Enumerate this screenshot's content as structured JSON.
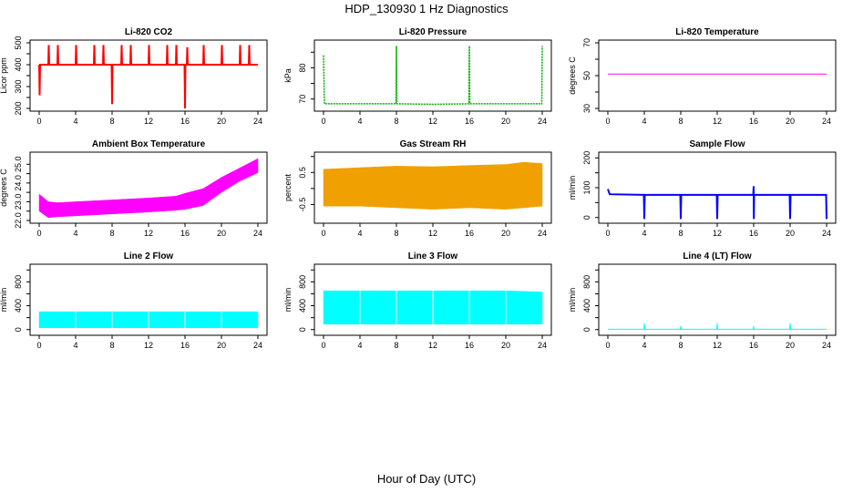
{
  "figure": {
    "title": "HDP_130930  1 Hz Diagnostics",
    "footer_label": "Hour of Day (UTC)"
  },
  "chart_data": [
    {
      "type": "line",
      "title": "Li-820 CO2",
      "ylabel": "Licor ppm",
      "color": "#ff0000",
      "xlim": [
        0,
        24
      ],
      "ylim": [
        200,
        500
      ],
      "xticks": [
        "0",
        "4",
        "8",
        "12",
        "16",
        "20",
        "24"
      ],
      "yticks": [
        200,
        250,
        300,
        350,
        400,
        450,
        500
      ],
      "ytick_labels": [
        "200",
        "",
        "300",
        "",
        "400",
        "",
        "500"
      ],
      "series": [
        {
          "values": [
            {
              "x": 0.0,
              "y": 400
            },
            {
              "x": 0.05,
              "y": 260
            },
            {
              "x": 0.1,
              "y": 400
            },
            {
              "x": 1.0,
              "y": 400
            },
            {
              "x": 1.05,
              "y": 490
            },
            {
              "x": 1.1,
              "y": 400
            },
            {
              "x": 2.0,
              "y": 400
            },
            {
              "x": 2.05,
              "y": 490
            },
            {
              "x": 2.1,
              "y": 400
            },
            {
              "x": 4.0,
              "y": 400
            },
            {
              "x": 4.05,
              "y": 490
            },
            {
              "x": 4.1,
              "y": 400
            },
            {
              "x": 6.0,
              "y": 400
            },
            {
              "x": 6.05,
              "y": 490
            },
            {
              "x": 6.1,
              "y": 400
            },
            {
              "x": 7.0,
              "y": 400
            },
            {
              "x": 7.05,
              "y": 490
            },
            {
              "x": 7.1,
              "y": 400
            },
            {
              "x": 7.95,
              "y": 400
            },
            {
              "x": 8.0,
              "y": 220
            },
            {
              "x": 8.05,
              "y": 400
            },
            {
              "x": 9.0,
              "y": 400
            },
            {
              "x": 9.05,
              "y": 490
            },
            {
              "x": 9.1,
              "y": 400
            },
            {
              "x": 10.0,
              "y": 400
            },
            {
              "x": 10.05,
              "y": 490
            },
            {
              "x": 10.1,
              "y": 400
            },
            {
              "x": 12.0,
              "y": 400
            },
            {
              "x": 12.05,
              "y": 490
            },
            {
              "x": 12.1,
              "y": 400
            },
            {
              "x": 14.0,
              "y": 400
            },
            {
              "x": 14.05,
              "y": 490
            },
            {
              "x": 14.1,
              "y": 400
            },
            {
              "x": 15.0,
              "y": 400
            },
            {
              "x": 15.05,
              "y": 490
            },
            {
              "x": 15.1,
              "y": 400
            },
            {
              "x": 15.95,
              "y": 400
            },
            {
              "x": 16.0,
              "y": 200
            },
            {
              "x": 16.05,
              "y": 400
            },
            {
              "x": 16.2,
              "y": 400
            },
            {
              "x": 16.25,
              "y": 480
            },
            {
              "x": 16.3,
              "y": 400
            },
            {
              "x": 18.0,
              "y": 400
            },
            {
              "x": 18.05,
              "y": 490
            },
            {
              "x": 18.1,
              "y": 400
            },
            {
              "x": 20.0,
              "y": 400
            },
            {
              "x": 20.05,
              "y": 490
            },
            {
              "x": 20.1,
              "y": 400
            },
            {
              "x": 22.0,
              "y": 400
            },
            {
              "x": 22.05,
              "y": 490
            },
            {
              "x": 22.1,
              "y": 400
            },
            {
              "x": 23.0,
              "y": 400
            },
            {
              "x": 23.05,
              "y": 490
            },
            {
              "x": 23.1,
              "y": 400
            },
            {
              "x": 24.0,
              "y": 400
            }
          ]
        }
      ]
    },
    {
      "type": "line",
      "title": "Li-820 Pressure",
      "ylabel": "kPa",
      "color": "#00b000",
      "xlim": [
        0,
        24
      ],
      "ylim": [
        67,
        88
      ],
      "xticks": [
        "0",
        "4",
        "8",
        "12",
        "16",
        "20",
        "24"
      ],
      "yticks": [
        70,
        75,
        80,
        85
      ],
      "ytick_labels": [
        "70",
        "",
        "80",
        ""
      ],
      "series": [
        {
          "values": [
            {
              "x": 0.0,
              "y": 84
            },
            {
              "x": 0.1,
              "y": 68.5
            },
            {
              "x": 7.95,
              "y": 68.5
            },
            {
              "x": 8.0,
              "y": 87
            },
            {
              "x": 8.05,
              "y": 68.5
            },
            {
              "x": 12.0,
              "y": 68.3
            },
            {
              "x": 15.95,
              "y": 68.5
            },
            {
              "x": 16.0,
              "y": 87
            },
            {
              "x": 16.05,
              "y": 68.5
            },
            {
              "x": 23.95,
              "y": 68.5
            },
            {
              "x": 24.0,
              "y": 87
            }
          ]
        }
      ]
    },
    {
      "type": "line",
      "title": "Li-820 Temperature",
      "ylabel": "degrees C",
      "color": "#ff00ff",
      "xlim": [
        0,
        24
      ],
      "ylim": [
        30,
        70
      ],
      "xticks": [
        "0",
        "4",
        "8",
        "12",
        "16",
        "20",
        "24"
      ],
      "yticks": [
        30,
        40,
        50,
        60,
        70
      ],
      "ytick_labels": [
        "30",
        "",
        "50",
        "",
        "70"
      ],
      "series": [
        {
          "values": [
            {
              "x": 0,
              "y": 51
            },
            {
              "x": 24,
              "y": 51
            }
          ]
        }
      ]
    },
    {
      "type": "area",
      "title": "Ambient Box Temperature",
      "ylabel": "degrees C",
      "color": "#ff00ff",
      "xlim": [
        0,
        24
      ],
      "ylim": [
        22,
        25.5
      ],
      "xticks": [
        "0",
        "4",
        "8",
        "12",
        "16",
        "20",
        "24"
      ],
      "yticks": [
        22.0,
        22.5,
        23.0,
        23.5,
        24.0,
        24.5,
        25.0
      ],
      "ytick_labels": [
        "22.0",
        "",
        "23.0",
        "",
        "24.0",
        "",
        "25.0"
      ],
      "series": [
        {
          "name": "upper",
          "values": [
            {
              "x": 0,
              "y": 23.4
            },
            {
              "x": 1,
              "y": 23.0
            },
            {
              "x": 2,
              "y": 22.95
            },
            {
              "x": 4,
              "y": 23.0
            },
            {
              "x": 8,
              "y": 23.1
            },
            {
              "x": 12,
              "y": 23.2
            },
            {
              "x": 15,
              "y": 23.3
            },
            {
              "x": 16,
              "y": 23.45
            },
            {
              "x": 18,
              "y": 23.7
            },
            {
              "x": 20,
              "y": 24.3
            },
            {
              "x": 22,
              "y": 24.8
            },
            {
              "x": 24,
              "y": 25.3
            }
          ]
        },
        {
          "name": "lower",
          "values": [
            {
              "x": 0,
              "y": 22.5
            },
            {
              "x": 1,
              "y": 22.15
            },
            {
              "x": 2,
              "y": 22.2
            },
            {
              "x": 4,
              "y": 22.25
            },
            {
              "x": 8,
              "y": 22.35
            },
            {
              "x": 12,
              "y": 22.45
            },
            {
              "x": 15,
              "y": 22.55
            },
            {
              "x": 16,
              "y": 22.6
            },
            {
              "x": 18,
              "y": 22.8
            },
            {
              "x": 20,
              "y": 23.5
            },
            {
              "x": 22,
              "y": 24.1
            },
            {
              "x": 24,
              "y": 24.55
            }
          ]
        }
      ]
    },
    {
      "type": "area",
      "title": "Gas Stream RH",
      "ylabel": "percent",
      "color": "#f0a000",
      "xlim": [
        0,
        24
      ],
      "ylim": [
        -1.0,
        1.05
      ],
      "xticks": [
        "0",
        "4",
        "8",
        "12",
        "16",
        "20",
        "24"
      ],
      "yticks": [
        -0.5,
        0.0,
        0.5,
        1.0
      ],
      "ytick_labels": [
        "-0.5",
        "",
        "0.5",
        ""
      ],
      "series": [
        {
          "name": "upper",
          "values": [
            {
              "x": 0,
              "y": 0.6
            },
            {
              "x": 4,
              "y": 0.65
            },
            {
              "x": 8,
              "y": 0.7
            },
            {
              "x": 12,
              "y": 0.68
            },
            {
              "x": 16,
              "y": 0.72
            },
            {
              "x": 20,
              "y": 0.75
            },
            {
              "x": 22,
              "y": 0.82
            },
            {
              "x": 24,
              "y": 0.78
            }
          ]
        },
        {
          "name": "lower",
          "values": [
            {
              "x": 0,
              "y": -0.55
            },
            {
              "x": 4,
              "y": -0.55
            },
            {
              "x": 8,
              "y": -0.6
            },
            {
              "x": 12,
              "y": -0.65
            },
            {
              "x": 16,
              "y": -0.6
            },
            {
              "x": 20,
              "y": -0.65
            },
            {
              "x": 22,
              "y": -0.6
            },
            {
              "x": 24,
              "y": -0.55
            }
          ]
        }
      ]
    },
    {
      "type": "line",
      "title": "Sample Flow",
      "ylabel": "ml/min",
      "color": "#0000ff",
      "xlim": [
        0,
        24
      ],
      "ylim": [
        -10,
        210
      ],
      "xticks": [
        "0",
        "4",
        "8",
        "12",
        "16",
        "20",
        "24"
      ],
      "yticks": [
        0,
        50,
        100,
        150,
        200
      ],
      "ytick_labels": [
        "0",
        "",
        "100",
        "",
        "200"
      ],
      "series": [
        {
          "values": [
            {
              "x": 0.0,
              "y": 95
            },
            {
              "x": 0.2,
              "y": 78
            },
            {
              "x": 3.95,
              "y": 76
            },
            {
              "x": 4.0,
              "y": -5
            },
            {
              "x": 4.05,
              "y": 76
            },
            {
              "x": 7.95,
              "y": 76
            },
            {
              "x": 8.0,
              "y": -5
            },
            {
              "x": 8.05,
              "y": 76
            },
            {
              "x": 11.95,
              "y": 76
            },
            {
              "x": 12.0,
              "y": -5
            },
            {
              "x": 12.05,
              "y": 76
            },
            {
              "x": 15.95,
              "y": 76
            },
            {
              "x": 16.0,
              "y": 105
            },
            {
              "x": 16.02,
              "y": -5
            },
            {
              "x": 16.05,
              "y": 76
            },
            {
              "x": 19.95,
              "y": 76
            },
            {
              "x": 20.0,
              "y": -5
            },
            {
              "x": 20.05,
              "y": 76
            },
            {
              "x": 23.95,
              "y": 76
            },
            {
              "x": 24.0,
              "y": -5
            }
          ]
        }
      ]
    },
    {
      "type": "area",
      "title": "Line 2 Flow",
      "ylabel": "ml/min",
      "color": "#00ffff",
      "xlim": [
        0,
        24
      ],
      "ylim": [
        -50,
        1050
      ],
      "xticks": [
        "0",
        "4",
        "8",
        "12",
        "16",
        "20",
        "24"
      ],
      "yticks": [
        0,
        200,
        400,
        600,
        800,
        1000
      ],
      "ytick_labels": [
        "0",
        "",
        "400",
        "",
        "800",
        ""
      ],
      "series": [
        {
          "values": [
            {
              "x": 0,
              "y": 300
            },
            {
              "x": 24,
              "y": 300
            }
          ]
        }
      ]
    },
    {
      "type": "area",
      "title": "Line 3 Flow",
      "ylabel": "ml/min",
      "color": "#00ffff",
      "xlim": [
        0,
        24
      ],
      "ylim": [
        -50,
        1050
      ],
      "xticks": [
        "0",
        "4",
        "8",
        "12",
        "16",
        "20",
        "24"
      ],
      "yticks": [
        0,
        200,
        400,
        600,
        800,
        1000
      ],
      "ytick_labels": [
        "0",
        "",
        "400",
        "",
        "800",
        ""
      ],
      "series": [
        {
          "values": [
            {
              "x": 0,
              "y": 650
            },
            {
              "x": 20,
              "y": 650
            },
            {
              "x": 24,
              "y": 630
            }
          ]
        }
      ]
    },
    {
      "type": "line",
      "title": "Line 4 (LT) Flow",
      "ylabel": "ml/min",
      "color": "#00ffff",
      "xlim": [
        0,
        24
      ],
      "ylim": [
        -50,
        1050
      ],
      "xticks": [
        "0",
        "4",
        "8",
        "12",
        "16",
        "20",
        "24"
      ],
      "yticks": [
        0,
        200,
        400,
        600,
        800,
        1000
      ],
      "ytick_labels": [
        "0",
        "",
        "400",
        "",
        "800",
        ""
      ],
      "series": [
        {
          "values": [
            {
              "x": 0,
              "y": 5
            },
            {
              "x": 3.95,
              "y": 5
            },
            {
              "x": 4.0,
              "y": 110
            },
            {
              "x": 4.05,
              "y": 5
            },
            {
              "x": 7.95,
              "y": 5
            },
            {
              "x": 8.0,
              "y": 60
            },
            {
              "x": 8.05,
              "y": 5
            },
            {
              "x": 11.95,
              "y": 5
            },
            {
              "x": 12.0,
              "y": 110
            },
            {
              "x": 12.05,
              "y": 5
            },
            {
              "x": 15.95,
              "y": 5
            },
            {
              "x": 16.0,
              "y": 60
            },
            {
              "x": 16.05,
              "y": 5
            },
            {
              "x": 19.95,
              "y": 5
            },
            {
              "x": 20.0,
              "y": 110
            },
            {
              "x": 20.05,
              "y": 5
            },
            {
              "x": 24,
              "y": 5
            }
          ]
        }
      ]
    }
  ]
}
